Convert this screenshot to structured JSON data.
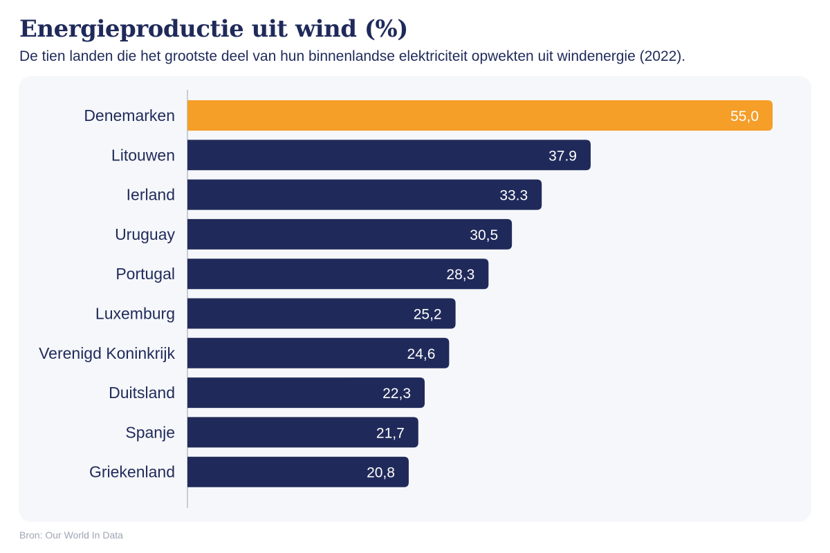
{
  "title": "Energieproductie uit wind (%)",
  "subtitle": "De tien landen die het grootste deel van hun binnenlandse elektriciteit opwekten uit windenergie (2022).",
  "source": "Bron: Our World In Data",
  "colors": {
    "highlight": "#f59e28",
    "bar": "#202a5a",
    "text": "#1f2a5a",
    "axis": "#c8ccd6",
    "panel": "#f6f7fa"
  },
  "chart_data": {
    "type": "bar",
    "orientation": "horizontal",
    "title": "Energieproductie uit wind (%)",
    "xlabel": "",
    "ylabel": "",
    "xlim": [
      0,
      55
    ],
    "grid": false,
    "highlight_category": "Denemarken",
    "categories": [
      "Denemarken",
      "Litouwen",
      "Ierland",
      "Uruguay",
      "Portugal",
      "Luxemburg",
      "Verenigd Koninkrijk",
      "Duitsland",
      "Spanje",
      "Griekenland"
    ],
    "values": [
      55.0,
      37.9,
      33.3,
      30.5,
      28.3,
      25.2,
      24.6,
      22.3,
      21.7,
      20.8
    ],
    "value_labels": [
      "55,0",
      "37.9",
      "33.3",
      "30,5",
      "28,3",
      "25,2",
      "24,6",
      "22,3",
      "21,7",
      "20,8"
    ]
  }
}
